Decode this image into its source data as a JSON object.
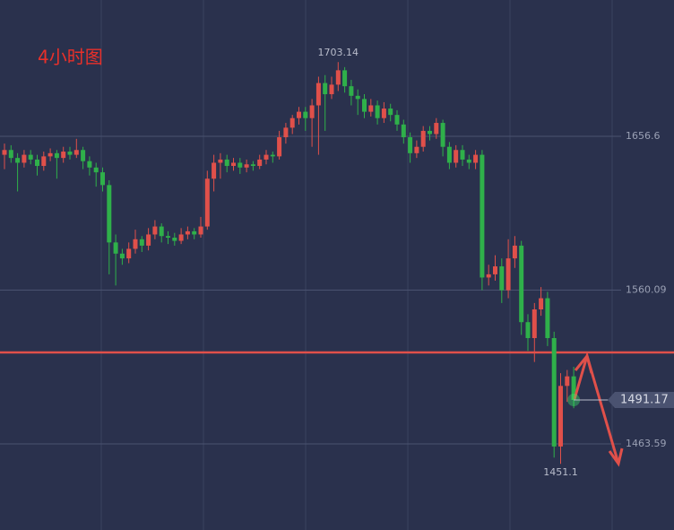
{
  "chart_data": {
    "type": "candlestick",
    "title": "4小时图",
    "ylim": [
      1409.6,
      1742.1
    ],
    "yticks": [
      1463.59,
      1560.09,
      1656.6
    ],
    "grid": true,
    "up_color": "#e0504a",
    "down_color": "#2fb04a",
    "level": 1521,
    "level_color": "#e0504a",
    "ohlc": [
      [
        1645,
        1652,
        1636,
        1648
      ],
      [
        1648,
        1651,
        1640,
        1643
      ],
      [
        1643,
        1646,
        1622,
        1640
      ],
      [
        1640,
        1648,
        1637,
        1645
      ],
      [
        1645,
        1648,
        1639,
        1642
      ],
      [
        1642,
        1645,
        1632,
        1638
      ],
      [
        1638,
        1647,
        1635,
        1644
      ],
      [
        1644,
        1649,
        1641,
        1646
      ],
      [
        1646,
        1648,
        1630,
        1643
      ],
      [
        1643,
        1650,
        1640,
        1647
      ],
      [
        1647,
        1650,
        1642,
        1645
      ],
      [
        1645,
        1655,
        1643,
        1648
      ],
      [
        1648,
        1650,
        1636,
        1641
      ],
      [
        1641,
        1644,
        1632,
        1637
      ],
      [
        1637,
        1640,
        1625,
        1634
      ],
      [
        1634,
        1637,
        1622,
        1626
      ],
      [
        1626,
        1629,
        1570,
        1590
      ],
      [
        1590,
        1595,
        1563,
        1583
      ],
      [
        1583,
        1586,
        1576,
        1580
      ],
      [
        1580,
        1590,
        1577,
        1586
      ],
      [
        1586,
        1598,
        1583,
        1592
      ],
      [
        1592,
        1594,
        1584,
        1588
      ],
      [
        1588,
        1599,
        1585,
        1595
      ],
      [
        1595,
        1604,
        1592,
        1600
      ],
      [
        1600,
        1602,
        1590,
        1594
      ],
      [
        1594,
        1597,
        1589,
        1593
      ],
      [
        1593,
        1596,
        1588,
        1591
      ],
      [
        1591,
        1599,
        1589,
        1595
      ],
      [
        1595,
        1600,
        1592,
        1597
      ],
      [
        1597,
        1599,
        1592,
        1595
      ],
      [
        1595,
        1606,
        1593,
        1600
      ],
      [
        1600,
        1635,
        1598,
        1630
      ],
      [
        1630,
        1645,
        1622,
        1640
      ],
      [
        1640,
        1646,
        1630,
        1642
      ],
      [
        1642,
        1645,
        1634,
        1638
      ],
      [
        1638,
        1643,
        1635,
        1640
      ],
      [
        1640,
        1643,
        1633,
        1637
      ],
      [
        1637,
        1642,
        1634,
        1639
      ],
      [
        1639,
        1641,
        1635,
        1638
      ],
      [
        1638,
        1645,
        1636,
        1642
      ],
      [
        1642,
        1648,
        1639,
        1645
      ],
      [
        1645,
        1647,
        1640,
        1644
      ],
      [
        1644,
        1660,
        1642,
        1656
      ],
      [
        1656,
        1665,
        1652,
        1662
      ],
      [
        1662,
        1670,
        1658,
        1668
      ],
      [
        1668,
        1675,
        1664,
        1672
      ],
      [
        1672,
        1675,
        1660,
        1668
      ],
      [
        1668,
        1680,
        1650,
        1676
      ],
      [
        1676,
        1694,
        1645,
        1690
      ],
      [
        1690,
        1695,
        1660,
        1683
      ],
      [
        1683,
        1694,
        1680,
        1689
      ],
      [
        1689,
        1703.14,
        1685,
        1698
      ],
      [
        1698,
        1700,
        1684,
        1688
      ],
      [
        1688,
        1692,
        1676,
        1682
      ],
      [
        1682,
        1686,
        1670,
        1680
      ],
      [
        1680,
        1683,
        1668,
        1672
      ],
      [
        1672,
        1680,
        1669,
        1676
      ],
      [
        1676,
        1679,
        1664,
        1668
      ],
      [
        1668,
        1678,
        1665,
        1674
      ],
      [
        1674,
        1677,
        1666,
        1670
      ],
      [
        1670,
        1673,
        1660,
        1664
      ],
      [
        1664,
        1667,
        1652,
        1656
      ],
      [
        1656,
        1659,
        1640,
        1646
      ],
      [
        1646,
        1654,
        1643,
        1650
      ],
      [
        1650,
        1663,
        1647,
        1660
      ],
      [
        1660,
        1663,
        1654,
        1658
      ],
      [
        1658,
        1668,
        1655,
        1665
      ],
      [
        1665,
        1667,
        1644,
        1650
      ],
      [
        1650,
        1653,
        1636,
        1640
      ],
      [
        1640,
        1651,
        1637,
        1648
      ],
      [
        1648,
        1651,
        1638,
        1642
      ],
      [
        1642,
        1645,
        1636,
        1640
      ],
      [
        1640,
        1648,
        1636,
        1645
      ],
      [
        1645,
        1648,
        1560,
        1568
      ],
      [
        1568,
        1576,
        1563,
        1570
      ],
      [
        1570,
        1582,
        1566,
        1575
      ],
      [
        1575,
        1580,
        1552,
        1560
      ],
      [
        1560,
        1592,
        1555,
        1580
      ],
      [
        1580,
        1594,
        1574,
        1588
      ],
      [
        1588,
        1591,
        1532,
        1540
      ],
      [
        1540,
        1545,
        1522,
        1530
      ],
      [
        1530,
        1552,
        1515,
        1548
      ],
      [
        1548,
        1562,
        1544,
        1555
      ],
      [
        1555,
        1559,
        1525,
        1530
      ],
      [
        1530,
        1534,
        1455,
        1462
      ],
      [
        1462,
        1508,
        1451.1,
        1500
      ],
      [
        1500,
        1510,
        1490,
        1506
      ],
      [
        1506,
        1512,
        1486,
        1491.17
      ]
    ]
  }
}
